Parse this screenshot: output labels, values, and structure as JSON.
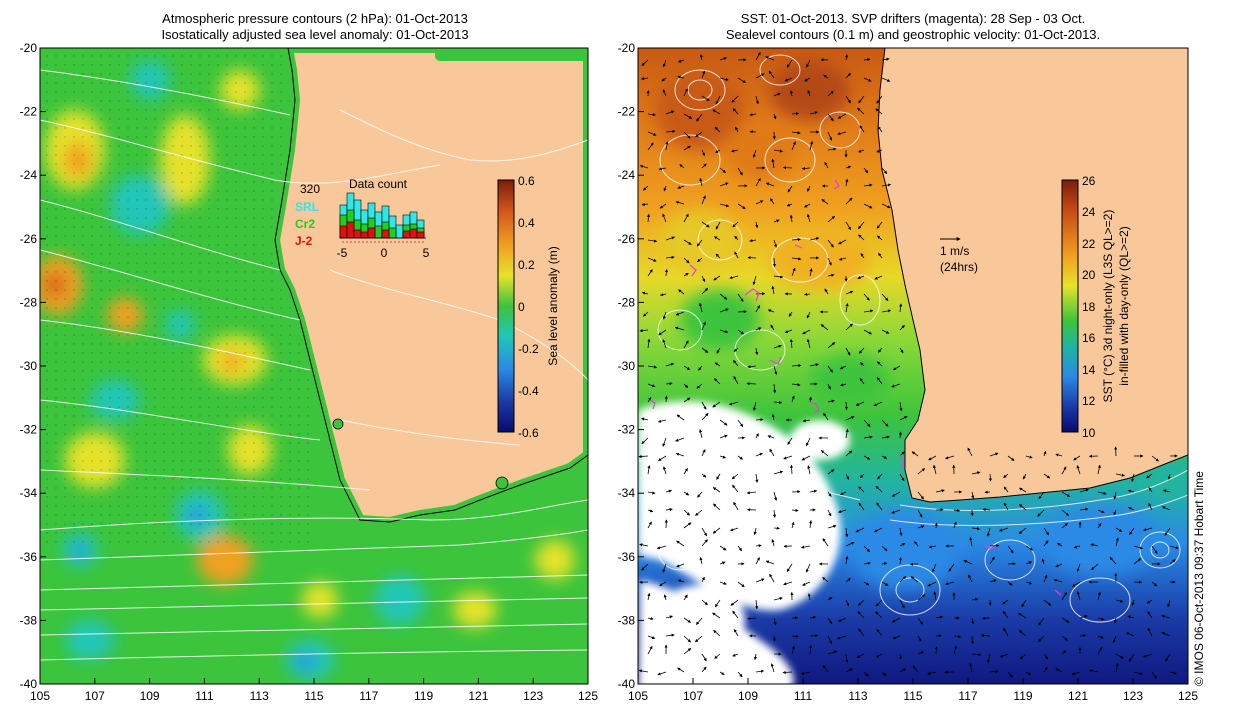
{
  "left_panel": {
    "title_line1": "Atmospheric pressure contours (2 hPa): 01-Oct-2013",
    "title_line2": "Isostatically adjusted sea level anomaly: 01-Oct-2013",
    "colorbar": {
      "label": "Sea level anomaly (m)",
      "ticks": [
        "0.6",
        "0.4",
        "0.2",
        "0",
        "-0.2",
        "-0.4",
        "-0.6"
      ]
    },
    "inset": {
      "title": "Data count",
      "count": "320",
      "legend": [
        {
          "name": "SRL",
          "color": "#33e6e6"
        },
        {
          "name": "Cr2",
          "color": "#22cc22"
        },
        {
          "name": "J-2",
          "color": "#e01010"
        }
      ],
      "xticks": [
        "-5",
        "0",
        "5"
      ]
    }
  },
  "right_panel": {
    "title_line1": "SST: 01-Oct-2013. SVP drifters (magenta): 28 Sep - 03 Oct.",
    "title_line2": "Sealevel contours (0.1 m) and geostrophic velocity: 01-Oct-2013.",
    "scale_label": "1 m/s",
    "scale_sub": "(24hrs)",
    "colorbar": {
      "label_line1": "SST (°C) 3d night-only (L3S QL>=2)",
      "label_line2": "in-filled with day-only (QL>=2)",
      "ticks": [
        "26",
        "24",
        "22",
        "20",
        "18",
        "16",
        "14",
        "12",
        "10"
      ]
    }
  },
  "axes": {
    "x_ticks": [
      "105",
      "107",
      "109",
      "111",
      "113",
      "115",
      "117",
      "119",
      "121",
      "123",
      "125"
    ],
    "y_ticks": [
      "-20",
      "-22",
      "-24",
      "-26",
      "-28",
      "-30",
      "-32",
      "-34",
      "-36",
      "-38",
      "-40"
    ]
  },
  "credit": "© IMOS 06-Oct-2013 09:37 Hobart Time",
  "colors": {
    "land": "#f9c89a",
    "ocean_green": "#3cc43c",
    "coast": "#000000",
    "contour": "#ffffff",
    "drifter": "#e040e0"
  }
}
